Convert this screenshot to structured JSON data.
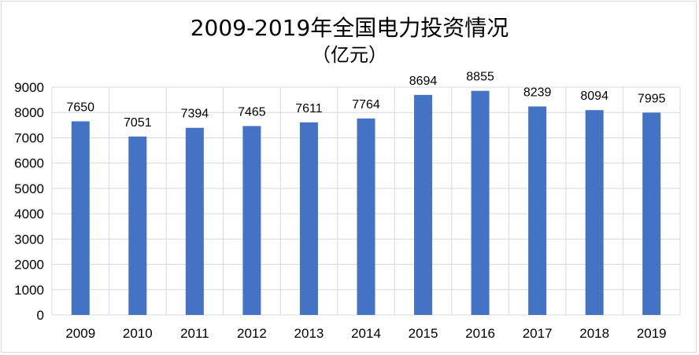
{
  "chart_data": {
    "type": "bar",
    "title": "2009-2019年全国电力投资情况",
    "subtitle": "（亿元）",
    "categories": [
      "2009",
      "2010",
      "2011",
      "2012",
      "2013",
      "2014",
      "2015",
      "2016",
      "2017",
      "2018",
      "2019"
    ],
    "values": [
      7650,
      7051,
      7394,
      7465,
      7611,
      7764,
      8694,
      8855,
      8239,
      8094,
      7995
    ],
    "ylim": [
      0,
      9000
    ],
    "yticks": [
      0,
      1000,
      2000,
      3000,
      4000,
      5000,
      6000,
      7000,
      8000,
      9000
    ],
    "grid": true,
    "legend": "none",
    "bar_color": "#4472c4",
    "grid_color": "#d9d9d9"
  }
}
